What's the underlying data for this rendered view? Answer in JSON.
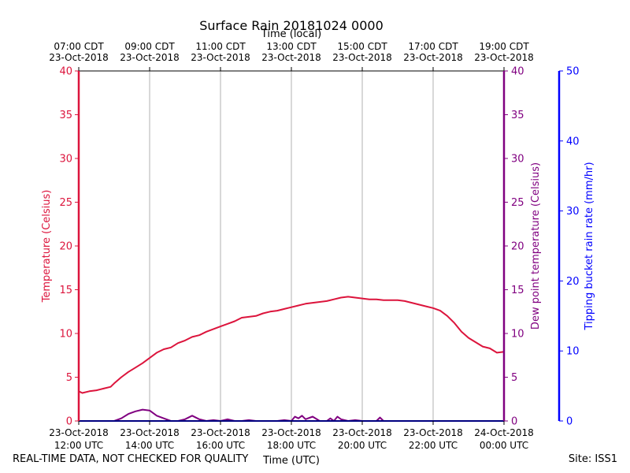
{
  "chart_data": {
    "type": "line",
    "title": "Surface Rain 20181024 0000",
    "top_axis_label": "Time (local)",
    "xlabel": "Time (UTC)",
    "ylabel_left": "Temperature (Celsius)",
    "ylabel_right": "Dew point temperature (Celsius)",
    "ylabel_far_right": "Tipping bucket rain rate (mm/hr)",
    "xlim_hours_utc": [
      12,
      24
    ],
    "ylim_left": [
      0,
      40
    ],
    "ylim_right": [
      0,
      40
    ],
    "ylim_far_right": [
      0,
      50
    ],
    "yticks_left": [
      "0",
      "5",
      "10",
      "15",
      "20",
      "25",
      "30",
      "35",
      "40"
    ],
    "yticks_right": [
      "0",
      "5",
      "10",
      "15",
      "20",
      "25",
      "30",
      "35",
      "40"
    ],
    "yticks_far_right": [
      "0",
      "10",
      "20",
      "30",
      "40",
      "50"
    ],
    "xticks_bottom": [
      {
        "h": 12,
        "line1": "23-Oct-2018",
        "line2": "12:00 UTC"
      },
      {
        "h": 14,
        "line1": "23-Oct-2018",
        "line2": "14:00 UTC"
      },
      {
        "h": 16,
        "line1": "23-Oct-2018",
        "line2": "16:00 UTC"
      },
      {
        "h": 18,
        "line1": "23-Oct-2018",
        "line2": "18:00 UTC"
      },
      {
        "h": 20,
        "line1": "23-Oct-2018",
        "line2": "20:00 UTC"
      },
      {
        "h": 22,
        "line1": "23-Oct-2018",
        "line2": "22:00 UTC"
      },
      {
        "h": 24,
        "line1": "24-Oct-2018",
        "line2": "00:00 UTC"
      }
    ],
    "xticks_top": [
      {
        "h": 12,
        "line1": "07:00 CDT",
        "line2": "23-Oct-2018"
      },
      {
        "h": 14,
        "line1": "09:00 CDT",
        "line2": "23-Oct-2018"
      },
      {
        "h": 16,
        "line1": "11:00 CDT",
        "line2": "23-Oct-2018"
      },
      {
        "h": 18,
        "line1": "13:00 CDT",
        "line2": "23-Oct-2018"
      },
      {
        "h": 20,
        "line1": "15:00 CDT",
        "line2": "23-Oct-2018"
      },
      {
        "h": 22,
        "line1": "17:00 CDT",
        "line2": "23-Oct-2018"
      },
      {
        "h": 24,
        "line1": "19:00 CDT",
        "line2": "23-Oct-2018"
      }
    ],
    "grid_vertical": true,
    "series": [
      {
        "name": "Temperature",
        "axis": "left",
        "color": "#dc143c",
        "x": [
          12.0,
          12.1,
          12.3,
          12.5,
          12.7,
          12.9,
          13.0,
          13.2,
          13.4,
          13.6,
          13.8,
          14.0,
          14.2,
          14.4,
          14.6,
          14.8,
          15.0,
          15.2,
          15.4,
          15.6,
          15.8,
          16.0,
          16.2,
          16.4,
          16.6,
          16.8,
          17.0,
          17.2,
          17.4,
          17.6,
          17.8,
          18.0,
          18.2,
          18.4,
          18.6,
          18.8,
          19.0,
          19.2,
          19.4,
          19.6,
          19.8,
          20.0,
          20.2,
          20.4,
          20.6,
          20.8,
          21.0,
          21.2,
          21.4,
          21.6,
          21.8,
          22.0,
          22.2,
          22.4,
          22.6,
          22.8,
          23.0,
          23.2,
          23.4,
          23.6,
          23.8,
          24.0
        ],
        "values": [
          3.4,
          3.2,
          3.4,
          3.5,
          3.7,
          3.9,
          4.3,
          5.0,
          5.6,
          6.1,
          6.6,
          7.2,
          7.8,
          8.2,
          8.4,
          8.9,
          9.2,
          9.6,
          9.8,
          10.2,
          10.5,
          10.8,
          11.1,
          11.4,
          11.8,
          11.9,
          12.0,
          12.3,
          12.5,
          12.6,
          12.8,
          13.0,
          13.2,
          13.4,
          13.5,
          13.6,
          13.7,
          13.9,
          14.1,
          14.2,
          14.1,
          14.0,
          13.9,
          13.9,
          13.8,
          13.8,
          13.8,
          13.7,
          13.5,
          13.3,
          13.1,
          12.9,
          12.6,
          12.0,
          11.2,
          10.2,
          9.5,
          9.0,
          8.5,
          8.3,
          7.8,
          7.9
        ]
      },
      {
        "name": "Dew point temperature",
        "axis": "right",
        "color": "#800080",
        "x": [
          12.0,
          12.4,
          12.8,
          13.0,
          13.2,
          13.4,
          13.6,
          13.8,
          14.0,
          14.2,
          14.4,
          14.6,
          14.8,
          15.0,
          15.2,
          15.4,
          15.6,
          15.8,
          16.0,
          16.2,
          16.4,
          16.6,
          16.8,
          17.0,
          17.2,
          17.4,
          17.6,
          17.8,
          18.0,
          18.1,
          18.2,
          18.3,
          18.4,
          18.6,
          18.8,
          19.0,
          19.1,
          19.2,
          19.3,
          19.4,
          19.6,
          19.8,
          20.0,
          20.4,
          20.5,
          20.6,
          21.0,
          22.0,
          23.0,
          24.0
        ],
        "values": [
          0.0,
          0.0,
          0.0,
          0.0,
          0.3,
          0.8,
          1.1,
          1.3,
          1.2,
          0.6,
          0.3,
          0.0,
          0.0,
          0.2,
          0.6,
          0.2,
          0.0,
          0.1,
          0.0,
          0.2,
          0.0,
          0.0,
          0.1,
          0.0,
          0.0,
          0.0,
          0.0,
          0.1,
          0.0,
          0.5,
          0.3,
          0.6,
          0.2,
          0.5,
          0.0,
          0.0,
          0.3,
          0.0,
          0.5,
          0.2,
          0.0,
          0.1,
          0.0,
          0.0,
          0.4,
          0.0,
          0.0,
          0.0,
          0.0,
          0.0
        ]
      },
      {
        "name": "Tipping bucket rain rate",
        "axis": "far_right",
        "color": "#0000ff",
        "x": [
          12.0,
          24.0
        ],
        "values": [
          0,
          0
        ]
      }
    ]
  },
  "footer": {
    "left": "REAL-TIME DATA, NOT CHECKED FOR QUALITY",
    "right": "Site: ISS1"
  }
}
